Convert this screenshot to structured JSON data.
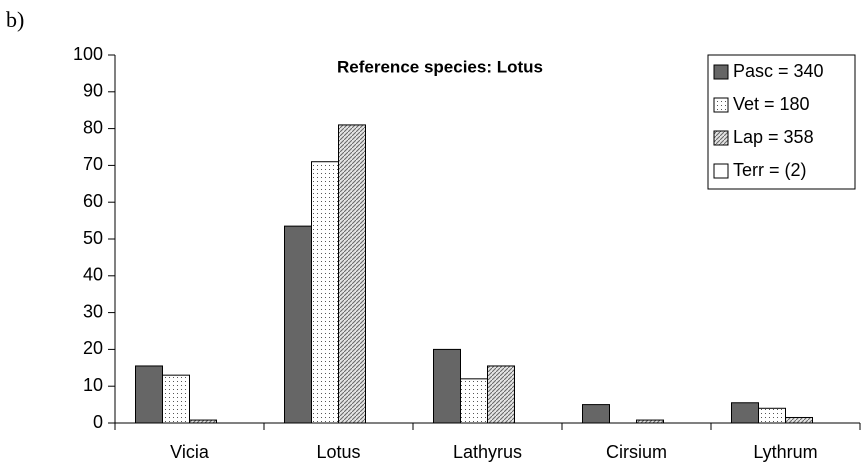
{
  "panel_label": "b)",
  "chart_data": {
    "type": "bar",
    "title": "Reference species: Lotus",
    "categories": [
      "Vicia",
      "Lotus",
      "Lathyrus",
      "Cirsium",
      "Lythrum"
    ],
    "series": [
      {
        "name": "Pasc = 340",
        "color": "#666666",
        "pattern": "solid",
        "values": [
          15.5,
          53.5,
          20,
          5,
          5.5
        ]
      },
      {
        "name": "Vet = 180",
        "color": "#ffffff",
        "pattern": "dots",
        "values": [
          13,
          71,
          12,
          0,
          4
        ]
      },
      {
        "name": "Lap = 358",
        "color": "#d0d0d0",
        "pattern": "hatch",
        "values": [
          0.8,
          81,
          15.5,
          0.8,
          1.5
        ]
      },
      {
        "name": "Terr = (2)",
        "color": "#ffffff",
        "pattern": "solid",
        "values": [
          0,
          0,
          0,
          0,
          0
        ]
      }
    ],
    "ylim": [
      0,
      100
    ],
    "yticks": [
      0,
      10,
      20,
      30,
      40,
      50,
      60,
      70,
      80,
      90,
      100
    ],
    "grid": false,
    "legend": "top-right"
  }
}
